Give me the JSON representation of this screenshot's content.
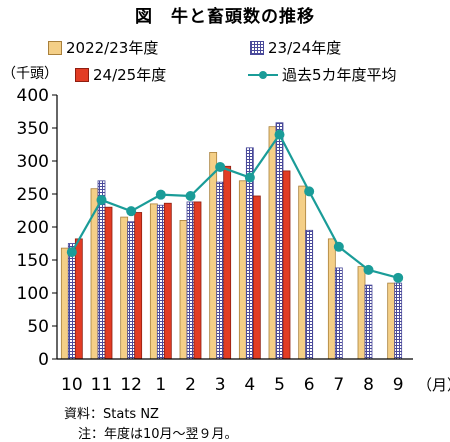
{
  "title": "図　牛と畜頭数の推移",
  "unit_label": "（千頭）",
  "month_unit": "（月）",
  "source": "資料：Stats NZ",
  "note": "注：年度は10月～翌９月。",
  "colors": {
    "series_a": "#f4cf87",
    "series_b": "#4a4a9a",
    "series_c": "#e23c24",
    "avg_line": "#1a9c98"
  },
  "chart_data": {
    "type": "bar",
    "categories": [
      "10",
      "11",
      "12",
      "1",
      "2",
      "3",
      "4",
      "5",
      "6",
      "7",
      "8",
      "9"
    ],
    "ylim": [
      0,
      400
    ],
    "yticks": [
      0,
      50,
      100,
      150,
      200,
      250,
      300,
      350,
      400
    ],
    "grid": false,
    "legend": "top",
    "series": [
      {
        "name": "2022/23年度",
        "type": "bar",
        "values": [
          168,
          258,
          215,
          235,
          210,
          313,
          270,
          352,
          262,
          182,
          140,
          115
        ]
      },
      {
        "name": "23/24年度",
        "type": "bar",
        "values": [
          175,
          270,
          208,
          233,
          238,
          268,
          320,
          358,
          195,
          138,
          112,
          115
        ]
      },
      {
        "name": "24/25年度",
        "type": "bar",
        "values": [
          182,
          230,
          222,
          236,
          238,
          292,
          247,
          285,
          null,
          null,
          null,
          null
        ]
      },
      {
        "name": "過去5カ年度平均",
        "type": "line",
        "values": [
          162,
          241,
          224,
          249,
          247,
          291,
          275,
          340,
          254,
          170,
          135,
          123
        ]
      }
    ]
  }
}
